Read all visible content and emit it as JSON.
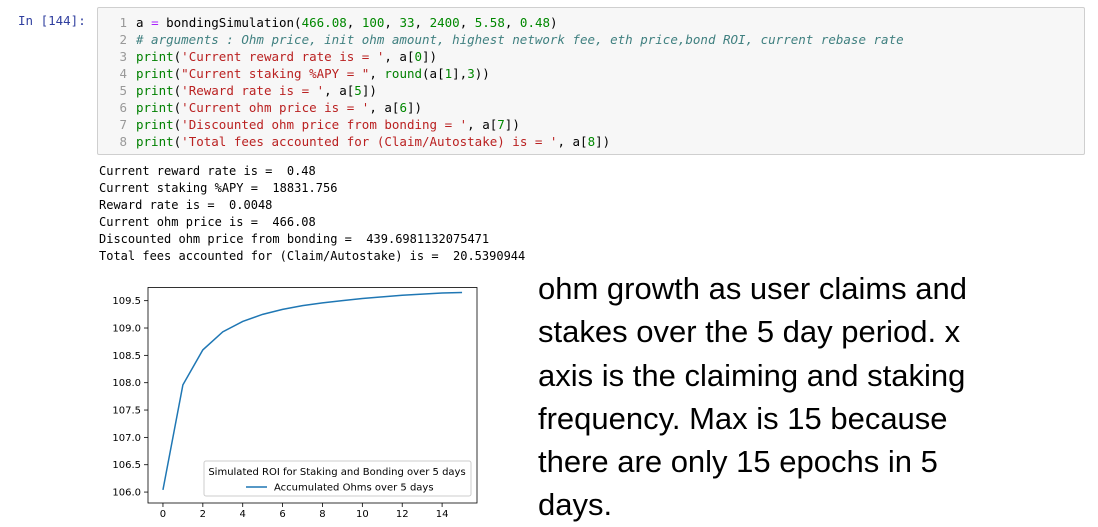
{
  "cell": {
    "prompt": "In [144]:",
    "code_lines": [
      {
        "num": "1",
        "tokens": [
          {
            "t": "a ",
            "c": "var"
          },
          {
            "t": "=",
            "c": "op"
          },
          {
            "t": " bondingSimulation(",
            "c": "fn"
          },
          {
            "t": "466.08",
            "c": "num"
          },
          {
            "t": ", ",
            "c": "fn"
          },
          {
            "t": "100",
            "c": "num"
          },
          {
            "t": ", ",
            "c": "fn"
          },
          {
            "t": "33",
            "c": "num"
          },
          {
            "t": ", ",
            "c": "fn"
          },
          {
            "t": "2400",
            "c": "num"
          },
          {
            "t": ", ",
            "c": "fn"
          },
          {
            "t": "5.58",
            "c": "num"
          },
          {
            "t": ", ",
            "c": "fn"
          },
          {
            "t": "0.48",
            "c": "num"
          },
          {
            "t": ")",
            "c": "fn"
          }
        ]
      },
      {
        "num": "2",
        "tokens": [
          {
            "t": "# arguments : Ohm price, init ohm amount, highest network fee, eth price,bond ROI, current rebase rate",
            "c": "cmt"
          }
        ]
      },
      {
        "num": "3",
        "tokens": [
          {
            "t": "print",
            "c": "kw"
          },
          {
            "t": "(",
            "c": "fn"
          },
          {
            "t": "'Current reward rate is = '",
            "c": "str"
          },
          {
            "t": ", a[",
            "c": "fn"
          },
          {
            "t": "0",
            "c": "num"
          },
          {
            "t": "])",
            "c": "fn"
          }
        ]
      },
      {
        "num": "4",
        "tokens": [
          {
            "t": "print",
            "c": "kw"
          },
          {
            "t": "(",
            "c": "fn"
          },
          {
            "t": "\"Current staking %APY = \"",
            "c": "str"
          },
          {
            "t": ", ",
            "c": "fn"
          },
          {
            "t": "round",
            "c": "kw"
          },
          {
            "t": "(a[",
            "c": "fn"
          },
          {
            "t": "1",
            "c": "num"
          },
          {
            "t": "],",
            "c": "fn"
          },
          {
            "t": "3",
            "c": "num"
          },
          {
            "t": "))",
            "c": "fn"
          }
        ]
      },
      {
        "num": "5",
        "tokens": [
          {
            "t": "print",
            "c": "kw"
          },
          {
            "t": "(",
            "c": "fn"
          },
          {
            "t": "'Reward rate is = '",
            "c": "str"
          },
          {
            "t": ", a[",
            "c": "fn"
          },
          {
            "t": "5",
            "c": "num"
          },
          {
            "t": "])",
            "c": "fn"
          }
        ]
      },
      {
        "num": "6",
        "tokens": [
          {
            "t": "print",
            "c": "kw"
          },
          {
            "t": "(",
            "c": "fn"
          },
          {
            "t": "'Current ohm price is = '",
            "c": "str"
          },
          {
            "t": ", a[",
            "c": "fn"
          },
          {
            "t": "6",
            "c": "num"
          },
          {
            "t": "])",
            "c": "fn"
          }
        ]
      },
      {
        "num": "7",
        "tokens": [
          {
            "t": "print",
            "c": "kw"
          },
          {
            "t": "(",
            "c": "fn"
          },
          {
            "t": "'Discounted ohm price from bonding = '",
            "c": "str"
          },
          {
            "t": ", a[",
            "c": "fn"
          },
          {
            "t": "7",
            "c": "num"
          },
          {
            "t": "])",
            "c": "fn"
          }
        ]
      },
      {
        "num": "8",
        "tokens": [
          {
            "t": "print",
            "c": "kw"
          },
          {
            "t": "(",
            "c": "fn"
          },
          {
            "t": "'Total fees accounted for (Claim/Autostake) is = '",
            "c": "str"
          },
          {
            "t": ", a[",
            "c": "fn"
          },
          {
            "t": "8",
            "c": "num"
          },
          {
            "t": "])",
            "c": "fn"
          }
        ]
      }
    ],
    "output_lines": [
      "Current reward rate is =  0.48",
      "Current staking %APY =  18831.756",
      "Reward rate is =  0.0048",
      "Current ohm price is =  466.08",
      "Discounted ohm price from bonding =  439.6981132075471",
      "Total fees accounted for (Claim/Autostake) is =  20.5390944"
    ]
  },
  "note_lines": [
    "ohm growth as user claims and",
    "stakes over the 5 day period. x",
    "axis is the claiming and staking",
    "frequency. Max is 15 because",
    "there are only 15 epochs in 5",
    "days."
  ],
  "chart_data": {
    "type": "line",
    "title": "",
    "xlabel": "",
    "ylabel": "",
    "xlim": [
      -0.75,
      15.75
    ],
    "ylim": [
      105.8,
      109.75
    ],
    "xticks": [
      0,
      2,
      4,
      6,
      8,
      10,
      12,
      14
    ],
    "yticks": [
      106.0,
      106.5,
      107.0,
      107.5,
      108.0,
      108.5,
      109.0,
      109.5
    ],
    "ytick_labels": [
      "106.0",
      "106.5",
      "107.0",
      "107.5",
      "108.0",
      "108.5",
      "109.0",
      "109.5"
    ],
    "legend": {
      "title": "Simulated ROI for Staking and Bonding over 5 days",
      "position": "lower-right"
    },
    "grid": false,
    "series": [
      {
        "name": "Accumulated Ohms over 5 days",
        "color": "#1f77b4",
        "x": [
          0,
          1,
          2,
          3,
          4,
          5,
          6,
          7,
          8,
          9,
          10,
          11,
          12,
          13,
          14,
          15
        ],
        "values": [
          106.04,
          107.96,
          108.6,
          108.93,
          109.12,
          109.25,
          109.34,
          109.41,
          109.46,
          109.5,
          109.54,
          109.57,
          109.6,
          109.62,
          109.64,
          109.65
        ]
      }
    ]
  }
}
